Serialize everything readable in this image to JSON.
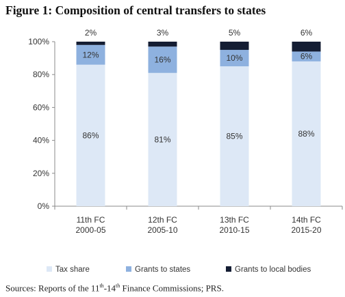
{
  "title": "Figure 1: Composition of central transfers to states",
  "chart_data": {
    "type": "bar",
    "stacked": true,
    "categories": [
      {
        "line1": "11th FC",
        "line2": "2000-05"
      },
      {
        "line1": "12th FC",
        "line2": "2005-10"
      },
      {
        "line1": "13th FC",
        "line2": "2010-15"
      },
      {
        "line1": "14th FC",
        "line2": "2015-20"
      }
    ],
    "series": [
      {
        "name": "Tax share",
        "color": "#dde8f6",
        "values": [
          86,
          81,
          85,
          88
        ],
        "labels": [
          "86%",
          "81%",
          "85%",
          "88%"
        ]
      },
      {
        "name": "Grants to states",
        "color": "#8eb1df",
        "values": [
          12,
          16,
          10,
          6
        ],
        "labels": [
          "12%",
          "16%",
          "10%",
          "6%"
        ]
      },
      {
        "name": "Grants to local bodies",
        "color": "#141d33",
        "values": [
          2,
          3,
          5,
          6
        ],
        "labels": [
          "2%",
          "3%",
          "5%",
          "6%"
        ]
      }
    ],
    "yticks": [
      "0%",
      "20%",
      "40%",
      "60%",
      "80%",
      "100%"
    ],
    "ylim": [
      0,
      100
    ],
    "xlabel": "",
    "ylabel": "",
    "legend": "bottom"
  },
  "source": {
    "prefix": "Sources: Reports of the 11",
    "sup1": "th",
    "middle": "-14",
    "sup2": "th",
    "suffix": " Finance Commissions; PRS."
  }
}
